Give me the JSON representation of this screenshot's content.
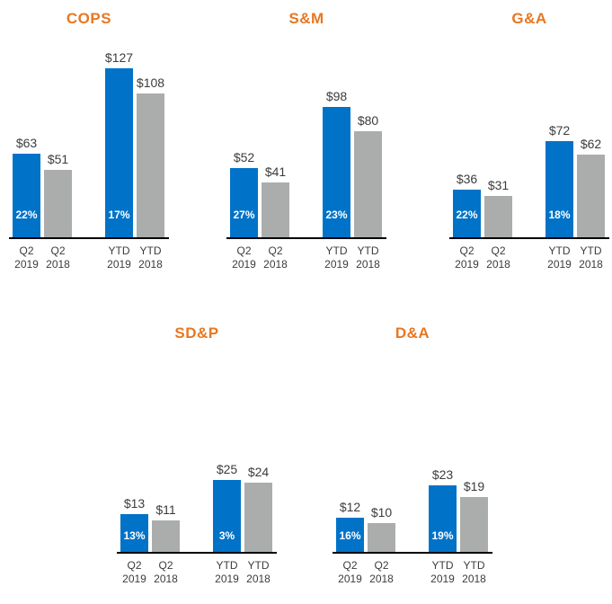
{
  "colors": {
    "title": "#e87722",
    "axis": "#000000",
    "value_label": "#3c3c3c",
    "pct_label": "#ffffff",
    "series": {
      "2019": "#0073c8",
      "2018": "#abadad"
    }
  },
  "chart_data": [
    {
      "type": "bar",
      "title": "COPS",
      "ylim": [
        0,
        127
      ],
      "grid": false,
      "legend": null,
      "bars": [
        {
          "period": "Q2",
          "year": "2019",
          "series": "2019",
          "value": 63,
          "value_label": "$63",
          "pct_label": "22%"
        },
        {
          "period": "Q2",
          "year": "2018",
          "series": "2018",
          "value": 51,
          "value_label": "$51",
          "pct_label": null
        },
        {
          "period": "YTD",
          "year": "2019",
          "series": "2019",
          "value": 127,
          "value_label": "$127",
          "pct_label": "17%"
        },
        {
          "period": "YTD",
          "year": "2018",
          "series": "2018",
          "value": 108,
          "value_label": "$108",
          "pct_label": null
        }
      ]
    },
    {
      "type": "bar",
      "title": "S&M",
      "ylim": [
        0,
        127
      ],
      "grid": false,
      "legend": null,
      "bars": [
        {
          "period": "Q2",
          "year": "2019",
          "series": "2019",
          "value": 52,
          "value_label": "$52",
          "pct_label": "27%"
        },
        {
          "period": "Q2",
          "year": "2018",
          "series": "2018",
          "value": 41,
          "value_label": "$41",
          "pct_label": null
        },
        {
          "period": "YTD",
          "year": "2019",
          "series": "2019",
          "value": 98,
          "value_label": "$98",
          "pct_label": "23%"
        },
        {
          "period": "YTD",
          "year": "2018",
          "series": "2018",
          "value": 80,
          "value_label": "$80",
          "pct_label": null
        }
      ]
    },
    {
      "type": "bar",
      "title": "G&A",
      "ylim": [
        0,
        127
      ],
      "grid": false,
      "legend": null,
      "bars": [
        {
          "period": "Q2",
          "year": "2019",
          "series": "2019",
          "value": 36,
          "value_label": "$36",
          "pct_label": "22%"
        },
        {
          "period": "Q2",
          "year": "2018",
          "series": "2018",
          "value": 31,
          "value_label": "$31",
          "pct_label": null
        },
        {
          "period": "YTD",
          "year": "2019",
          "series": "2019",
          "value": 72,
          "value_label": "$72",
          "pct_label": "18%"
        },
        {
          "period": "YTD",
          "year": "2018",
          "series": "2018",
          "value": 62,
          "value_label": "$62",
          "pct_label": null
        }
      ]
    },
    {
      "type": "bar",
      "title": "SD&P",
      "ylim": [
        0,
        25
      ],
      "grid": false,
      "legend": null,
      "bars": [
        {
          "period": "Q2",
          "year": "2019",
          "series": "2019",
          "value": 13,
          "value_label": "$13",
          "pct_label": "13%"
        },
        {
          "period": "Q2",
          "year": "2018",
          "series": "2018",
          "value": 11,
          "value_label": "$11",
          "pct_label": null
        },
        {
          "period": "YTD",
          "year": "2019",
          "series": "2019",
          "value": 25,
          "value_label": "$25",
          "pct_label": "3%"
        },
        {
          "period": "YTD",
          "year": "2018",
          "series": "2018",
          "value": 24,
          "value_label": "$24",
          "pct_label": null
        }
      ]
    },
    {
      "type": "bar",
      "title": "D&A",
      "ylim": [
        0,
        25
      ],
      "grid": false,
      "legend": null,
      "bars": [
        {
          "period": "Q2",
          "year": "2019",
          "series": "2019",
          "value": 12,
          "value_label": "$12",
          "pct_label": "16%"
        },
        {
          "period": "Q2",
          "year": "2018",
          "series": "2018",
          "value": 10,
          "value_label": "$10",
          "pct_label": null
        },
        {
          "period": "YTD",
          "year": "2019",
          "series": "2019",
          "value": 23,
          "value_label": "$23",
          "pct_label": "19%"
        },
        {
          "period": "YTD",
          "year": "2018",
          "series": "2018",
          "value": 19,
          "value_label": "$19",
          "pct_label": null
        }
      ]
    }
  ]
}
